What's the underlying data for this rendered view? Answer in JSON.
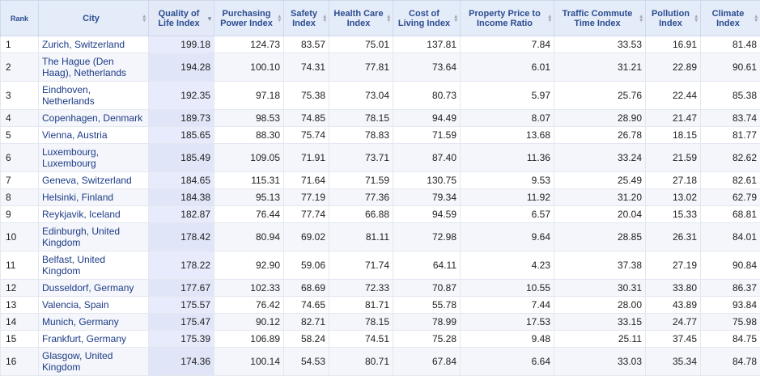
{
  "columns": [
    {
      "key": "rank",
      "label": "Rank",
      "sorted": false
    },
    {
      "key": "city",
      "label": "City",
      "sorted": false
    },
    {
      "key": "qol",
      "label": "Quality of Life Index",
      "sorted": true
    },
    {
      "key": "ppi",
      "label": "Purchasing Power Index",
      "sorted": false
    },
    {
      "key": "safety",
      "label": "Safety Index",
      "sorted": false
    },
    {
      "key": "health",
      "label": "Health Care Index",
      "sorted": false
    },
    {
      "key": "col",
      "label": "Cost of Living Index",
      "sorted": false
    },
    {
      "key": "ppir",
      "label": "Property Price to Income Ratio",
      "sorted": false
    },
    {
      "key": "traffic",
      "label": "Traffic Commute Time Index",
      "sorted": false
    },
    {
      "key": "pollution",
      "label": "Pollution Index",
      "sorted": false
    },
    {
      "key": "climate",
      "label": "Climate Index",
      "sorted": false
    }
  ],
  "rows": [
    {
      "rank": "1",
      "city": "Zurich, Switzerland",
      "qol": "199.18",
      "ppi": "124.73",
      "safety": "83.57",
      "health": "75.01",
      "col": "137.81",
      "ppir": "7.84",
      "traffic": "33.53",
      "pollution": "16.91",
      "climate": "81.48",
      "tall": false
    },
    {
      "rank": "2",
      "city": "The Hague (Den Haag), Netherlands",
      "qol": "194.28",
      "ppi": "100.10",
      "safety": "74.31",
      "health": "77.81",
      "col": "73.64",
      "ppir": "6.01",
      "traffic": "31.21",
      "pollution": "22.89",
      "climate": "90.61",
      "tall": true
    },
    {
      "rank": "3",
      "city": "Eindhoven, Netherlands",
      "qol": "192.35",
      "ppi": "97.18",
      "safety": "75.38",
      "health": "73.04",
      "col": "80.73",
      "ppir": "5.97",
      "traffic": "25.76",
      "pollution": "22.44",
      "climate": "85.38",
      "tall": true
    },
    {
      "rank": "4",
      "city": "Copenhagen, Denmark",
      "qol": "189.73",
      "ppi": "98.53",
      "safety": "74.85",
      "health": "78.15",
      "col": "94.49",
      "ppir": "8.07",
      "traffic": "28.90",
      "pollution": "21.47",
      "climate": "83.74",
      "tall": false
    },
    {
      "rank": "5",
      "city": "Vienna, Austria",
      "qol": "185.65",
      "ppi": "88.30",
      "safety": "75.74",
      "health": "78.83",
      "col": "71.59",
      "ppir": "13.68",
      "traffic": "26.78",
      "pollution": "18.15",
      "climate": "81.77",
      "tall": false
    },
    {
      "rank": "6",
      "city": "Luxembourg, Luxembourg",
      "qol": "185.49",
      "ppi": "109.05",
      "safety": "71.91",
      "health": "73.71",
      "col": "87.40",
      "ppir": "11.36",
      "traffic": "33.24",
      "pollution": "21.59",
      "climate": "82.62",
      "tall": true
    },
    {
      "rank": "7",
      "city": "Geneva, Switzerland",
      "qol": "184.65",
      "ppi": "115.31",
      "safety": "71.64",
      "health": "71.59",
      "col": "130.75",
      "ppir": "9.53",
      "traffic": "25.49",
      "pollution": "27.18",
      "climate": "82.61",
      "tall": false
    },
    {
      "rank": "8",
      "city": "Helsinki, Finland",
      "qol": "184.38",
      "ppi": "95.13",
      "safety": "77.19",
      "health": "77.36",
      "col": "79.34",
      "ppir": "11.92",
      "traffic": "31.20",
      "pollution": "13.02",
      "climate": "62.79",
      "tall": false
    },
    {
      "rank": "9",
      "city": "Reykjavik, Iceland",
      "qol": "182.87",
      "ppi": "76.44",
      "safety": "77.74",
      "health": "66.88",
      "col": "94.59",
      "ppir": "6.57",
      "traffic": "20.04",
      "pollution": "15.33",
      "climate": "68.81",
      "tall": false
    },
    {
      "rank": "10",
      "city": "Edinburgh, United Kingdom",
      "qol": "178.42",
      "ppi": "80.94",
      "safety": "69.02",
      "health": "81.11",
      "col": "72.98",
      "ppir": "9.64",
      "traffic": "28.85",
      "pollution": "26.31",
      "climate": "84.01",
      "tall": true
    },
    {
      "rank": "11",
      "city": "Belfast, United Kingdom",
      "qol": "178.22",
      "ppi": "92.90",
      "safety": "59.06",
      "health": "71.74",
      "col": "64.11",
      "ppir": "4.23",
      "traffic": "37.38",
      "pollution": "27.19",
      "climate": "90.84",
      "tall": true
    },
    {
      "rank": "12",
      "city": "Dusseldorf, Germany",
      "qol": "177.67",
      "ppi": "102.33",
      "safety": "68.69",
      "health": "72.33",
      "col": "70.87",
      "ppir": "10.55",
      "traffic": "30.31",
      "pollution": "33.80",
      "climate": "86.37",
      "tall": false
    },
    {
      "rank": "13",
      "city": "Valencia, Spain",
      "qol": "175.57",
      "ppi": "76.42",
      "safety": "74.65",
      "health": "81.71",
      "col": "55.78",
      "ppir": "7.44",
      "traffic": "28.00",
      "pollution": "43.89",
      "climate": "93.84",
      "tall": false
    },
    {
      "rank": "14",
      "city": "Munich, Germany",
      "qol": "175.47",
      "ppi": "90.12",
      "safety": "82.71",
      "health": "78.15",
      "col": "78.99",
      "ppir": "17.53",
      "traffic": "33.15",
      "pollution": "24.77",
      "climate": "75.98",
      "tall": false
    },
    {
      "rank": "15",
      "city": "Frankfurt, Germany",
      "qol": "175.39",
      "ppi": "106.89",
      "safety": "58.24",
      "health": "74.51",
      "col": "75.28",
      "ppir": "9.48",
      "traffic": "25.11",
      "pollution": "37.45",
      "climate": "84.75",
      "tall": false
    },
    {
      "rank": "16",
      "city": "Glasgow, United Kingdom",
      "qol": "174.36",
      "ppi": "100.14",
      "safety": "54.53",
      "health": "80.71",
      "col": "67.84",
      "ppir": "6.64",
      "traffic": "33.03",
      "pollution": "35.34",
      "climate": "84.78",
      "tall": true
    }
  ]
}
